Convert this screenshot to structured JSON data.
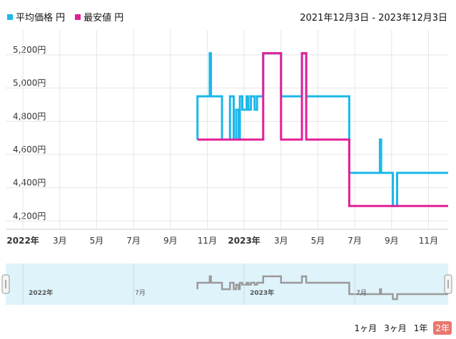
{
  "legend": {
    "items": [
      {
        "label": "平均価格 円",
        "color": "#1cb8ea"
      },
      {
        "label": "最安値 円",
        "color": "#e41e97"
      }
    ]
  },
  "date_range": "2021年12月3日 - 2023年12月3日",
  "range_buttons": [
    {
      "label": "1ヶ月",
      "active": false
    },
    {
      "label": "3ヶ月",
      "active": false
    },
    {
      "label": "1年",
      "active": false
    },
    {
      "label": "2年",
      "active": true
    }
  ],
  "colors": {
    "avg": "#1cb8ea",
    "min": "#e41e97",
    "navigator_bg": "#dff3fb",
    "navigator_line": "#9a9a9a"
  },
  "chart_data": {
    "type": "line",
    "x_unit": "month",
    "ylim": [
      4150,
      5350
    ],
    "yticks": [
      4200,
      4400,
      4600,
      4800,
      5000,
      5200
    ],
    "ytick_labels": [
      "4,200円",
      "4,400円",
      "4,600円",
      "4,800円",
      "5,000円",
      "5,200円"
    ],
    "xticks": [
      {
        "t": "2022-01",
        "label": "2022年",
        "bold": true
      },
      {
        "t": "2022-03",
        "label": "3月",
        "bold": false
      },
      {
        "t": "2022-05",
        "label": "5月",
        "bold": false
      },
      {
        "t": "2022-07",
        "label": "7月",
        "bold": false
      },
      {
        "t": "2022-09",
        "label": "9月",
        "bold": false
      },
      {
        "t": "2022-11",
        "label": "11月",
        "bold": false
      },
      {
        "t": "2023-01",
        "label": "2023年",
        "bold": true
      },
      {
        "t": "2023-03",
        "label": "3月",
        "bold": false
      },
      {
        "t": "2023-05",
        "label": "5月",
        "bold": false
      },
      {
        "t": "2023-07",
        "label": "7月",
        "bold": false
      },
      {
        "t": "2023-09",
        "label": "9月",
        "bold": false
      },
      {
        "t": "2023-11",
        "label": "11月",
        "bold": false
      }
    ],
    "navigator_labels": [
      {
        "t": "2022-01",
        "label": "2022年"
      },
      {
        "t": "2022-07",
        "label": "7月"
      },
      {
        "t": "2023-01",
        "label": "2023年"
      },
      {
        "t": "2023-07",
        "label": "7月"
      }
    ],
    "series": [
      {
        "name": "平均価格",
        "points": [
          [
            "2022-10-15",
            4690
          ],
          [
            "2022-10-15",
            4950
          ],
          [
            "2022-11-05",
            4950
          ],
          [
            "2022-11-05",
            5210
          ],
          [
            "2022-11-07",
            5210
          ],
          [
            "2022-11-07",
            4950
          ],
          [
            "2022-11-25",
            4950
          ],
          [
            "2022-11-25",
            4690
          ],
          [
            "2022-12-08",
            4690
          ],
          [
            "2022-12-08",
            4950
          ],
          [
            "2022-12-14",
            4950
          ],
          [
            "2022-12-14",
            4690
          ],
          [
            "2022-12-18",
            4690
          ],
          [
            "2022-12-18",
            4870
          ],
          [
            "2022-12-22",
            4870
          ],
          [
            "2022-12-22",
            4690
          ],
          [
            "2022-12-24",
            4690
          ],
          [
            "2022-12-24",
            4950
          ],
          [
            "2022-12-28",
            4950
          ],
          [
            "2022-12-28",
            4870
          ],
          [
            "2023-01-05",
            4870
          ],
          [
            "2023-01-05",
            4950
          ],
          [
            "2023-01-08",
            4950
          ],
          [
            "2023-01-08",
            4870
          ],
          [
            "2023-01-12",
            4870
          ],
          [
            "2023-01-12",
            4950
          ],
          [
            "2023-01-18",
            4950
          ],
          [
            "2023-01-18",
            4870
          ],
          [
            "2023-01-22",
            4870
          ],
          [
            "2023-01-22",
            4950
          ],
          [
            "2023-01-28",
            4950
          ],
          [
            "2023-02-02",
            4950
          ],
          [
            "2023-02-02",
            5210
          ],
          [
            "2023-03-01",
            5210
          ],
          [
            "2023-03-01",
            4950
          ],
          [
            "2023-04-05",
            4950
          ],
          [
            "2023-04-05",
            5210
          ],
          [
            "2023-04-12",
            5210
          ],
          [
            "2023-04-12",
            4950
          ],
          [
            "2023-06-22",
            4950
          ],
          [
            "2023-06-22",
            4490
          ],
          [
            "2023-08-12",
            4490
          ],
          [
            "2023-08-12",
            4690
          ],
          [
            "2023-08-14",
            4690
          ],
          [
            "2023-08-14",
            4490
          ],
          [
            "2023-09-03",
            4490
          ],
          [
            "2023-09-03",
            4290
          ],
          [
            "2023-09-10",
            4290
          ],
          [
            "2023-09-10",
            4490
          ],
          [
            "2023-12-03",
            4490
          ]
        ]
      },
      {
        "name": "最安値",
        "points": [
          [
            "2022-10-15",
            4690
          ],
          [
            "2023-01-28",
            4690
          ],
          [
            "2023-02-02",
            4690
          ],
          [
            "2023-02-02",
            5210
          ],
          [
            "2023-03-01",
            5210
          ],
          [
            "2023-03-01",
            4690
          ],
          [
            "2023-04-05",
            4690
          ],
          [
            "2023-04-05",
            5210
          ],
          [
            "2023-04-12",
            5210
          ],
          [
            "2023-04-12",
            4690
          ],
          [
            "2023-06-22",
            4690
          ],
          [
            "2023-06-22",
            4290
          ],
          [
            "2023-12-03",
            4290
          ]
        ]
      }
    ]
  }
}
